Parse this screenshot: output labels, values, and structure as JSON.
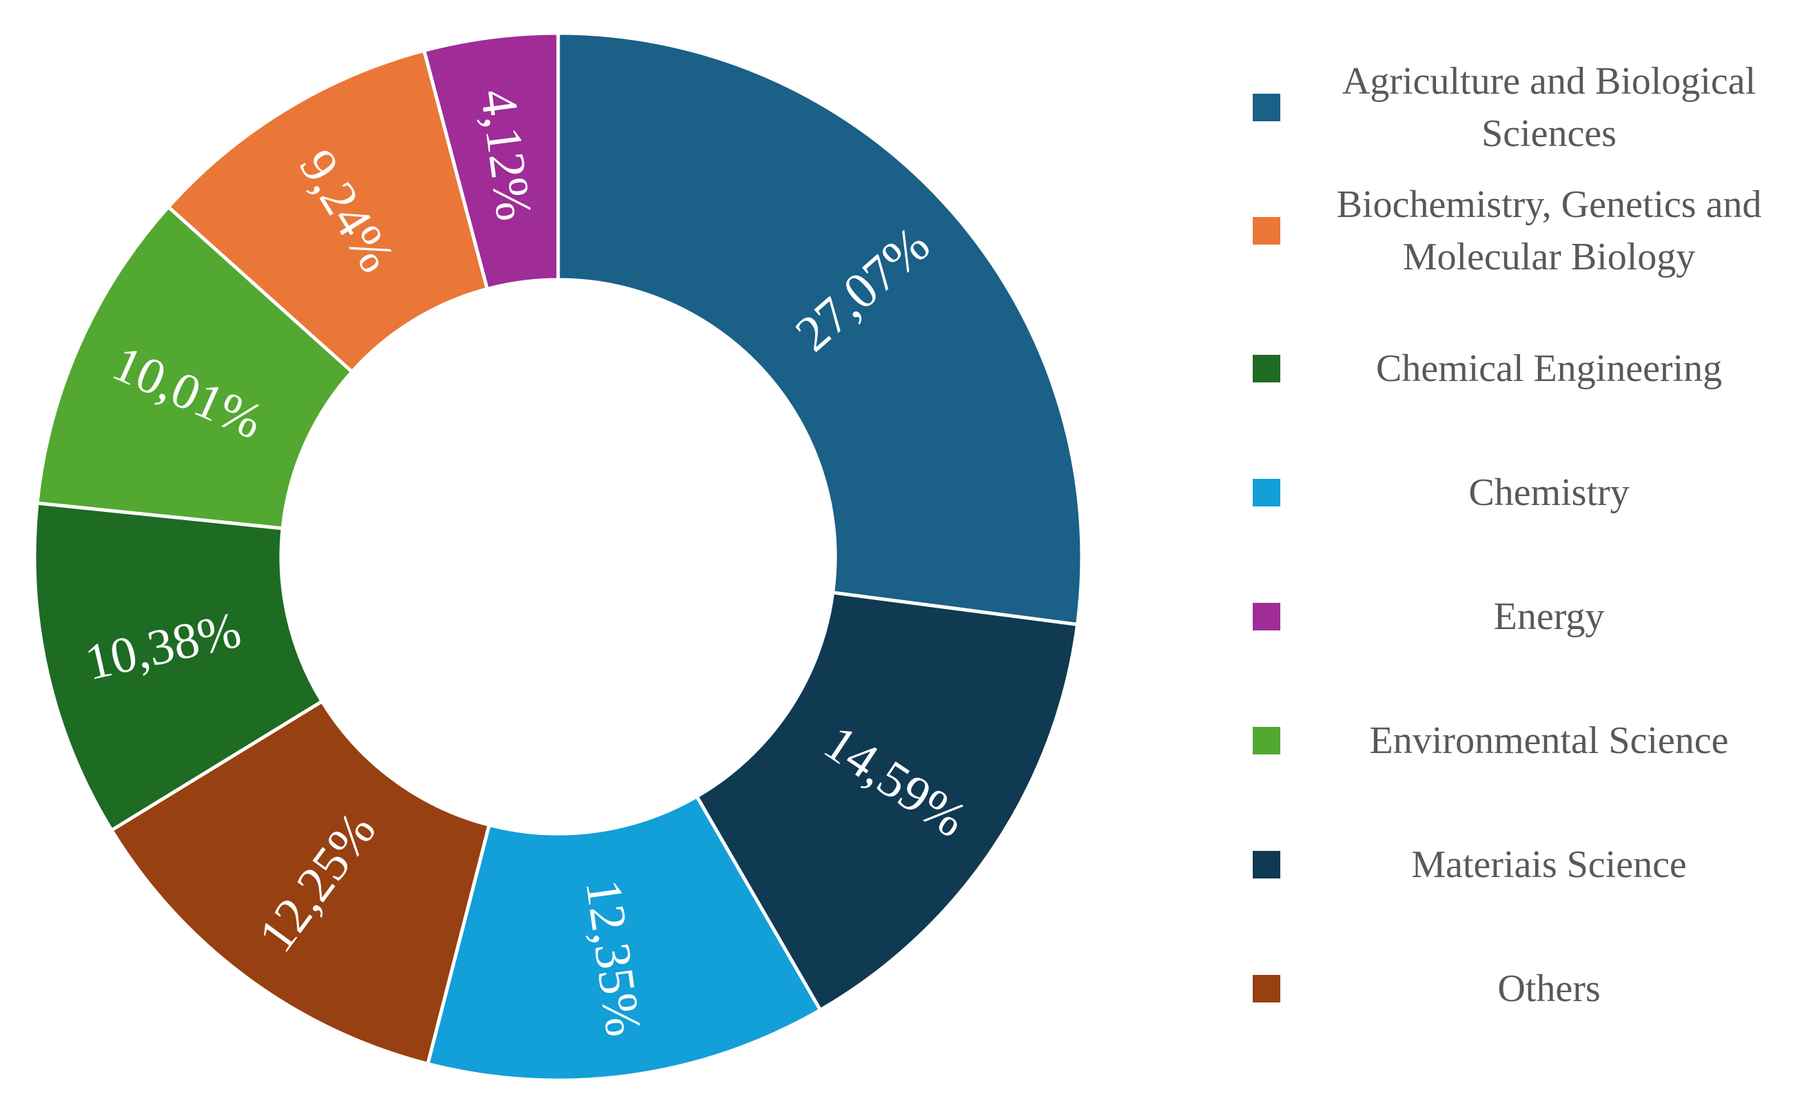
{
  "chart_data": {
    "type": "pie",
    "style": "donut",
    "title": "",
    "decimal_separator": ",",
    "start_angle_deg": 0,
    "direction": "clockwise",
    "slices": [
      {
        "name": "Agriculture and Biological Sciences",
        "value": 27.07,
        "label": "27,07%",
        "color": "#1A6087"
      },
      {
        "name": "Materiais Science",
        "value": 14.59,
        "label": "14,59%",
        "color": "#0F3A52"
      },
      {
        "name": "Chemistry",
        "value": 12.35,
        "label": "12,35%",
        "color": "#139FD8"
      },
      {
        "name": "Others",
        "value": 12.25,
        "label": "12,25%",
        "color": "#974011"
      },
      {
        "name": "Chemical Engineering",
        "value": 10.38,
        "label": "10,38%",
        "color": "#1E6B24"
      },
      {
        "name": "Environmental Science",
        "value": 10.01,
        "label": "10,01%",
        "color": "#53A831"
      },
      {
        "name": "Biochemistry, Genetics and Molecular Biology",
        "value": 9.24,
        "label": "9,24%",
        "color": "#EA7737"
      },
      {
        "name": "Energy",
        "value": 4.12,
        "label": "4,12%",
        "color": "#9F2C97"
      }
    ],
    "legend": {
      "placement": "right",
      "items": [
        {
          "lines": [
            "Agriculture and Biological",
            "Sciences"
          ],
          "color": "#1A6087"
        },
        {
          "lines": [
            "Biochemistry, Genetics and",
            "Molecular Biology"
          ],
          "color": "#EA7737"
        },
        {
          "lines": [
            "Chemical Engineering"
          ],
          "color": "#1E6B24"
        },
        {
          "lines": [
            "Chemistry"
          ],
          "color": "#139FD8"
        },
        {
          "lines": [
            "Energy"
          ],
          "color": "#9F2C97"
        },
        {
          "lines": [
            "Environmental Science"
          ],
          "color": "#53A831"
        },
        {
          "lines": [
            "Materiais Science"
          ],
          "color": "#0F3A52"
        },
        {
          "lines": [
            "Others"
          ],
          "color": "#974011"
        }
      ]
    }
  }
}
